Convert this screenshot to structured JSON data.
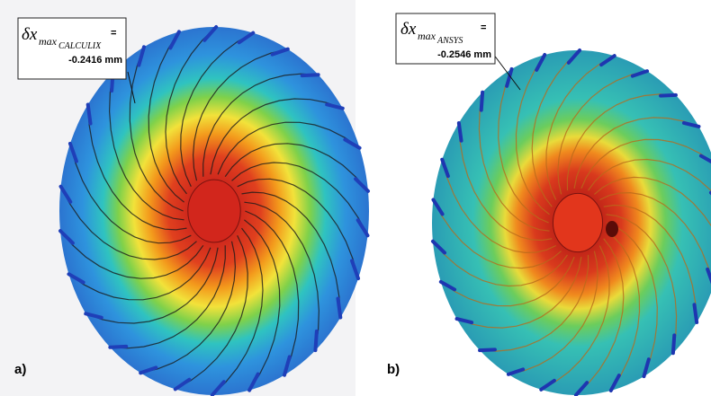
{
  "panels": [
    {
      "label": "a)",
      "annotation": {
        "symbol": "δx",
        "subscript": "max",
        "subsubscript": "CALCULIX",
        "equals": "=",
        "value": "-0.2416 mm"
      }
    },
    {
      "label": "b)",
      "annotation": {
        "symbol": "δx",
        "subscript": "max",
        "subsubscript": "ANSYS",
        "equals": "=",
        "value": "-0.2546 mm"
      }
    }
  ]
}
